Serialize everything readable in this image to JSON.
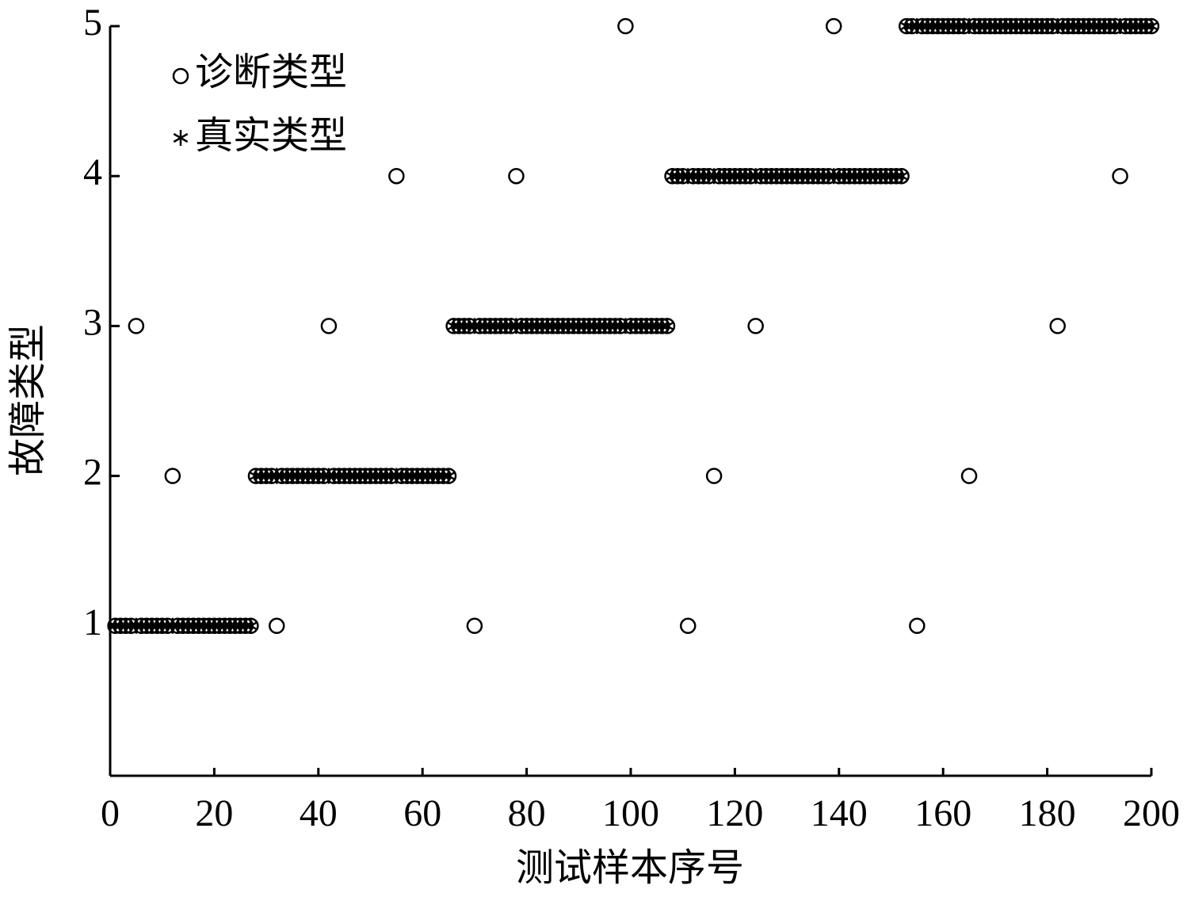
{
  "chart_data": {
    "type": "scatter",
    "xlabel": "测试样本序号",
    "ylabel": "故障类型",
    "x": [
      1,
      2,
      3,
      4,
      5,
      6,
      7,
      8,
      9,
      10,
      11,
      12,
      13,
      14,
      15,
      16,
      17,
      18,
      19,
      20,
      21,
      22,
      23,
      24,
      25,
      26,
      27,
      28,
      29,
      30,
      31,
      32,
      33,
      34,
      35,
      36,
      37,
      38,
      39,
      40,
      41,
      42,
      43,
      44,
      45,
      46,
      47,
      48,
      49,
      50,
      51,
      52,
      53,
      54,
      55,
      56,
      57,
      58,
      59,
      60,
      61,
      62,
      63,
      64,
      65,
      66,
      67,
      68,
      69,
      70,
      71,
      72,
      73,
      74,
      75,
      76,
      77,
      78,
      79,
      80,
      81,
      82,
      83,
      84,
      85,
      86,
      87,
      88,
      89,
      90,
      91,
      92,
      93,
      94,
      95,
      96,
      97,
      98,
      99,
      100,
      101,
      102,
      103,
      104,
      105,
      106,
      107,
      108,
      109,
      110,
      111,
      112,
      113,
      114,
      115,
      116,
      117,
      118,
      119,
      120,
      121,
      122,
      123,
      124,
      125,
      126,
      127,
      128,
      129,
      130,
      131,
      132,
      133,
      134,
      135,
      136,
      137,
      138,
      139,
      140,
      141,
      142,
      143,
      144,
      145,
      146,
      147,
      148,
      149,
      150,
      151,
      152,
      153,
      154,
      155,
      156,
      157,
      158,
      159,
      160,
      161,
      162,
      163,
      164,
      165,
      166,
      167,
      168,
      169,
      170,
      171,
      172,
      173,
      174,
      175,
      176,
      177,
      178,
      179,
      180,
      181,
      182,
      183,
      184,
      185,
      186,
      187,
      188,
      189,
      190,
      191,
      192,
      193,
      194,
      195,
      196,
      197,
      198,
      199,
      200
    ],
    "series": [
      {
        "name": "真实类型",
        "color": "#000000",
        "marker": "*",
        "values": [
          1,
          1,
          1,
          1,
          1,
          1,
          1,
          1,
          1,
          1,
          1,
          1,
          1,
          1,
          1,
          1,
          1,
          1,
          1,
          1,
          1,
          1,
          1,
          1,
          1,
          1,
          1,
          2,
          2,
          2,
          2,
          2,
          2,
          2,
          2,
          2,
          2,
          2,
          2,
          2,
          2,
          2,
          2,
          2,
          2,
          2,
          2,
          2,
          2,
          2,
          2,
          2,
          2,
          2,
          2,
          2,
          2,
          2,
          2,
          2,
          2,
          2,
          2,
          2,
          2,
          3,
          3,
          3,
          3,
          3,
          3,
          3,
          3,
          3,
          3,
          3,
          3,
          3,
          3,
          3,
          3,
          3,
          3,
          3,
          3,
          3,
          3,
          3,
          3,
          3,
          3,
          3,
          3,
          3,
          3,
          3,
          3,
          3,
          3,
          3,
          3,
          3,
          3,
          3,
          3,
          3,
          3,
          4,
          4,
          4,
          4,
          4,
          4,
          4,
          4,
          4,
          4,
          4,
          4,
          4,
          4,
          4,
          4,
          4,
          4,
          4,
          4,
          4,
          4,
          4,
          4,
          4,
          4,
          4,
          4,
          4,
          4,
          4,
          4,
          4,
          4,
          4,
          4,
          4,
          4,
          4,
          4,
          4,
          4,
          4,
          4,
          4,
          5,
          5,
          5,
          5,
          5,
          5,
          5,
          5,
          5,
          5,
          5,
          5,
          5,
          5,
          5,
          5,
          5,
          5,
          5,
          5,
          5,
          5,
          5,
          5,
          5,
          5,
          5,
          5,
          5,
          5,
          5,
          5,
          5,
          5,
          5,
          5,
          5,
          5,
          5,
          5,
          5,
          5,
          5,
          5,
          5,
          5,
          5,
          5
        ]
      },
      {
        "name": "诊断类型",
        "color": "#000000",
        "marker": "o",
        "values": [
          1,
          1,
          1,
          1,
          3,
          1,
          1,
          1,
          1,
          1,
          1,
          2,
          1,
          1,
          1,
          1,
          1,
          1,
          1,
          1,
          1,
          1,
          1,
          1,
          1,
          1,
          1,
          2,
          2,
          2,
          2,
          1,
          2,
          2,
          2,
          2,
          2,
          2,
          2,
          2,
          2,
          3,
          2,
          2,
          2,
          2,
          2,
          2,
          2,
          2,
          2,
          2,
          2,
          2,
          4,
          2,
          2,
          2,
          2,
          2,
          2,
          2,
          2,
          2,
          2,
          3,
          3,
          3,
          3,
          1,
          3,
          3,
          3,
          3,
          3,
          3,
          3,
          4,
          3,
          3,
          3,
          3,
          3,
          3,
          3,
          3,
          3,
          3,
          3,
          3,
          3,
          3,
          3,
          3,
          3,
          3,
          3,
          3,
          5,
          3,
          3,
          3,
          3,
          3,
          3,
          3,
          3,
          4,
          4,
          4,
          1,
          4,
          4,
          4,
          4,
          2,
          4,
          4,
          4,
          4,
          4,
          4,
          4,
          3,
          4,
          4,
          4,
          4,
          4,
          4,
          4,
          4,
          4,
          4,
          4,
          4,
          4,
          4,
          5,
          4,
          4,
          4,
          4,
          4,
          4,
          4,
          4,
          4,
          4,
          4,
          4,
          4,
          5,
          5,
          1,
          5,
          5,
          5,
          5,
          5,
          5,
          5,
          5,
          5,
          2,
          5,
          5,
          5,
          5,
          5,
          5,
          5,
          5,
          5,
          5,
          5,
          5,
          5,
          5,
          5,
          5,
          3,
          5,
          5,
          5,
          5,
          5,
          5,
          5,
          5,
          5,
          5,
          5,
          4,
          5,
          5,
          5,
          5,
          5,
          5
        ]
      }
    ],
    "xlim": [
      0,
      200
    ],
    "xticks": [
      0,
      20,
      40,
      60,
      80,
      100,
      120,
      140,
      160,
      180,
      200
    ],
    "ylim": [
      0,
      5
    ],
    "yticks": [
      1,
      2,
      3,
      4,
      5
    ],
    "legend": "upper-left"
  }
}
